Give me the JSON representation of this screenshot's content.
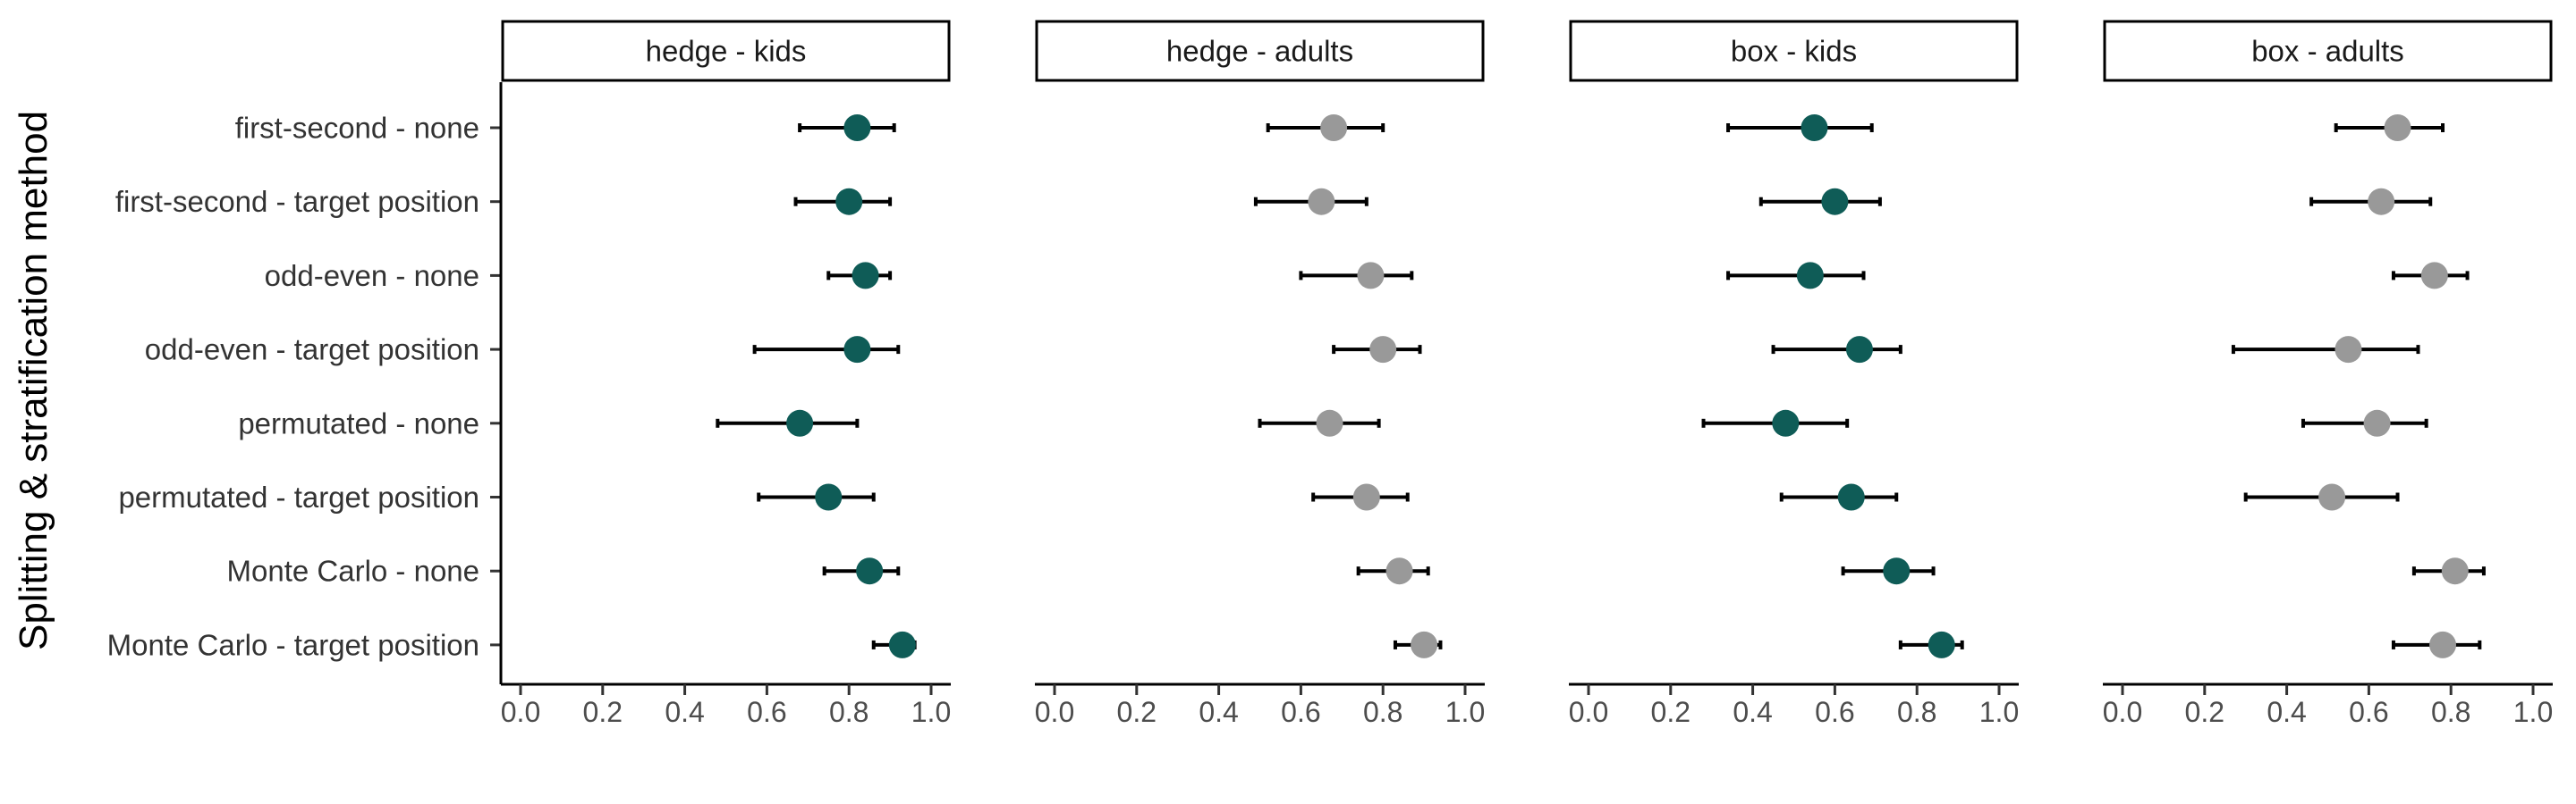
{
  "chart_data": {
    "type": "scatter",
    "subtype": "point-range (dot with error bars), faceted",
    "ylabel": "Splitting & stratification method",
    "xlabel": "",
    "xlim": [
      0,
      1
    ],
    "xticks": [
      0.0,
      0.2,
      0.4,
      0.6,
      0.8,
      1.0
    ],
    "xtick_labels": [
      "0.0",
      "0.2",
      "0.4",
      "0.6",
      "0.8",
      "1.0"
    ],
    "categories": [
      "first-second - none",
      "first-second - target position",
      "odd-even - none",
      "odd-even - target position",
      "permutated - none",
      "permutated - target position",
      "Monte Carlo - none",
      "Monte Carlo - target position"
    ],
    "grid": false,
    "legend": "none",
    "colors": {
      "kids": "#0f5c57",
      "adults": "#999999"
    },
    "panels": [
      {
        "name": "hedge - kids",
        "color": "#0f5c57",
        "points": [
          {
            "mean": 0.82,
            "lo": 0.68,
            "hi": 0.91
          },
          {
            "mean": 0.8,
            "lo": 0.67,
            "hi": 0.9
          },
          {
            "mean": 0.84,
            "lo": 0.75,
            "hi": 0.9
          },
          {
            "mean": 0.82,
            "lo": 0.57,
            "hi": 0.92
          },
          {
            "mean": 0.68,
            "lo": 0.48,
            "hi": 0.82
          },
          {
            "mean": 0.75,
            "lo": 0.58,
            "hi": 0.86
          },
          {
            "mean": 0.85,
            "lo": 0.74,
            "hi": 0.92
          },
          {
            "mean": 0.93,
            "lo": 0.86,
            "hi": 0.96
          }
        ]
      },
      {
        "name": "hedge - adults",
        "color": "#999999",
        "points": [
          {
            "mean": 0.68,
            "lo": 0.52,
            "hi": 0.8
          },
          {
            "mean": 0.65,
            "lo": 0.49,
            "hi": 0.76
          },
          {
            "mean": 0.77,
            "lo": 0.6,
            "hi": 0.87
          },
          {
            "mean": 0.8,
            "lo": 0.68,
            "hi": 0.89
          },
          {
            "mean": 0.67,
            "lo": 0.5,
            "hi": 0.79
          },
          {
            "mean": 0.76,
            "lo": 0.63,
            "hi": 0.86
          },
          {
            "mean": 0.84,
            "lo": 0.74,
            "hi": 0.91
          },
          {
            "mean": 0.9,
            "lo": 0.83,
            "hi": 0.94
          }
        ]
      },
      {
        "name": "box - kids",
        "color": "#0f5c57",
        "points": [
          {
            "mean": 0.55,
            "lo": 0.34,
            "hi": 0.69
          },
          {
            "mean": 0.6,
            "lo": 0.42,
            "hi": 0.71
          },
          {
            "mean": 0.54,
            "lo": 0.34,
            "hi": 0.67
          },
          {
            "mean": 0.66,
            "lo": 0.45,
            "hi": 0.76
          },
          {
            "mean": 0.48,
            "lo": 0.28,
            "hi": 0.63
          },
          {
            "mean": 0.64,
            "lo": 0.47,
            "hi": 0.75
          },
          {
            "mean": 0.75,
            "lo": 0.62,
            "hi": 0.84
          },
          {
            "mean": 0.86,
            "lo": 0.76,
            "hi": 0.91
          }
        ]
      },
      {
        "name": "box - adults",
        "color": "#999999",
        "points": [
          {
            "mean": 0.67,
            "lo": 0.52,
            "hi": 0.78
          },
          {
            "mean": 0.63,
            "lo": 0.46,
            "hi": 0.75
          },
          {
            "mean": 0.76,
            "lo": 0.66,
            "hi": 0.84
          },
          {
            "mean": 0.55,
            "lo": 0.27,
            "hi": 0.72
          },
          {
            "mean": 0.62,
            "lo": 0.44,
            "hi": 0.74
          },
          {
            "mean": 0.51,
            "lo": 0.3,
            "hi": 0.67
          },
          {
            "mean": 0.81,
            "lo": 0.71,
            "hi": 0.88
          },
          {
            "mean": 0.78,
            "lo": 0.66,
            "hi": 0.87
          }
        ]
      }
    ]
  }
}
